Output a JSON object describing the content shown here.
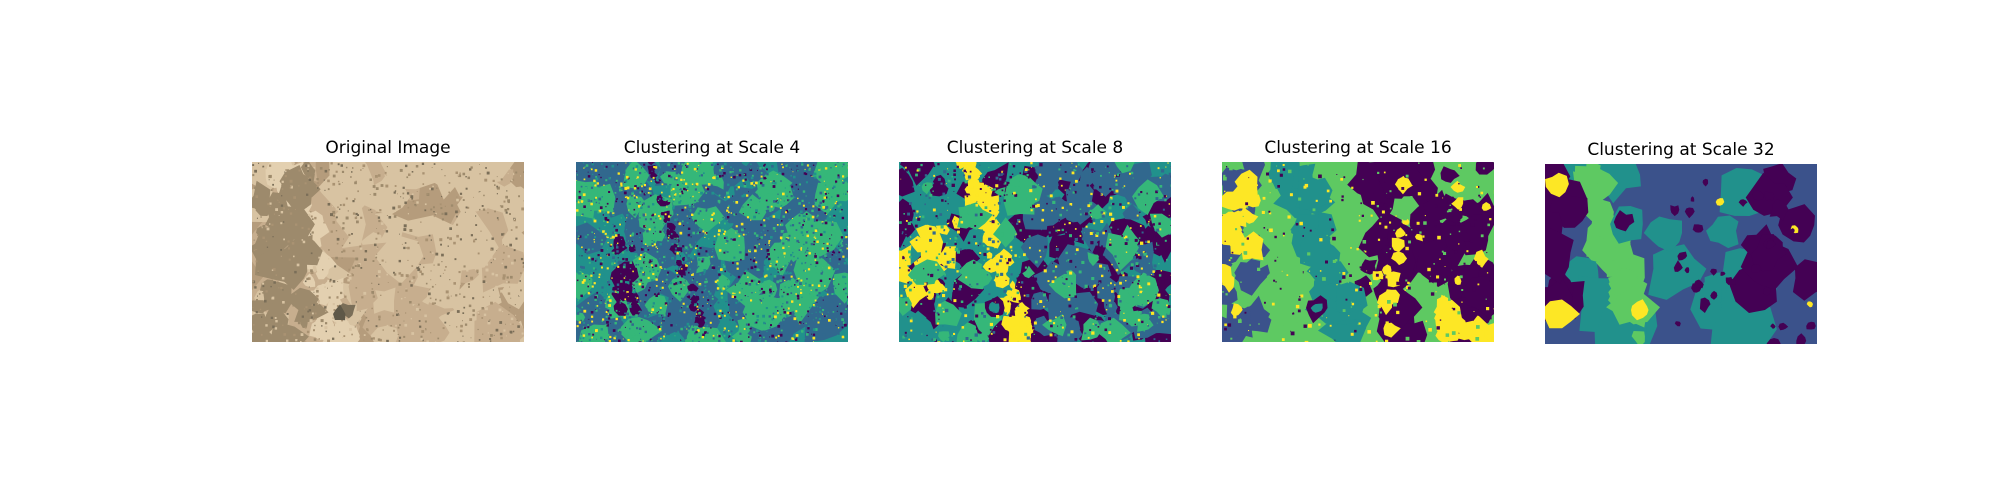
{
  "figure": {
    "panels": [
      {
        "title": "Original Image",
        "palette": [
          "#b59c7c",
          "#c7ae8e",
          "#d8c3a2",
          "#9d8a6c",
          "#7a6e58",
          "#e3d0b0",
          "#a99272"
        ]
      },
      {
        "title": "Clustering at Scale 4",
        "palette": [
          "#440154",
          "#31688e",
          "#35b779",
          "#fde725",
          "#21918c",
          "#1f9e89"
        ]
      },
      {
        "title": "Clustering at Scale 8",
        "palette": [
          "#440154",
          "#31688e",
          "#21918c",
          "#35b779",
          "#fde725"
        ]
      },
      {
        "title": "Clustering at Scale 16",
        "palette": [
          "#440154",
          "#3b528b",
          "#21918c",
          "#5ec962",
          "#fde725"
        ]
      },
      {
        "title": "Clustering at Scale 32",
        "palette": [
          "#440154",
          "#3b528b",
          "#21918c",
          "#5ec962",
          "#fde725"
        ]
      }
    ]
  }
}
